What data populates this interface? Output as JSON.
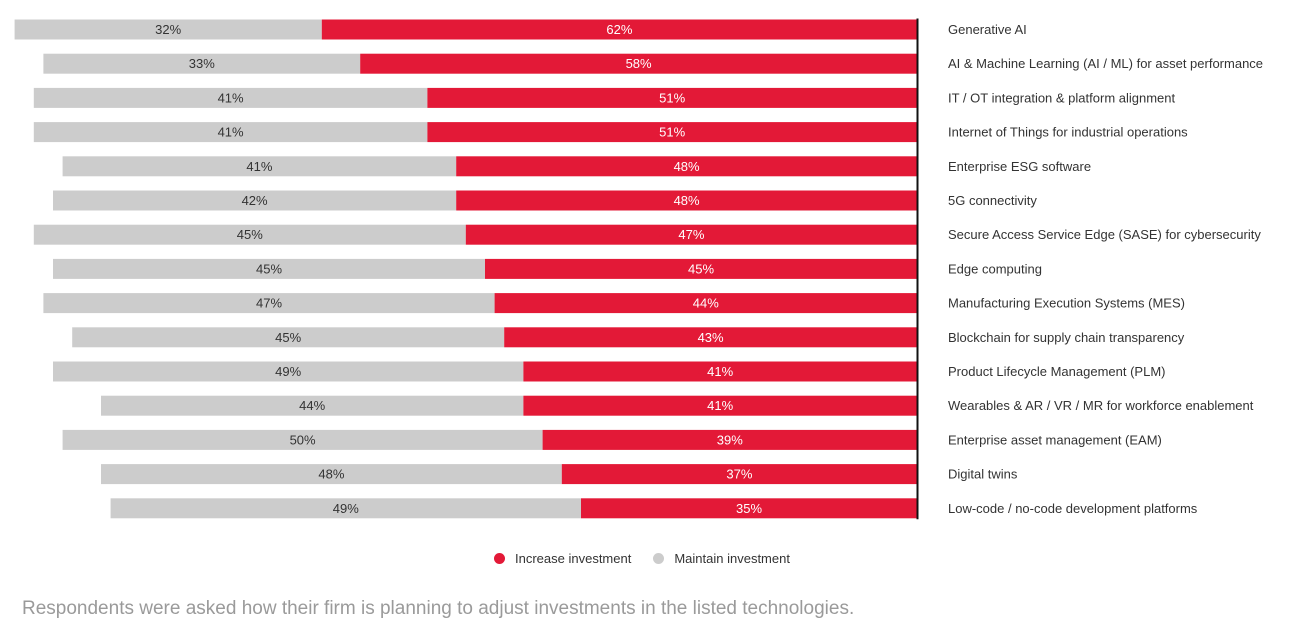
{
  "chart_data": {
    "type": "bar",
    "orientation": "horizontal-stacked-diverging",
    "categories": [
      "Generative AI",
      "AI & Machine Learning (AI / ML) for asset performance",
      "IT / OT integration & platform alignment",
      "Internet of Things for industrial operations",
      "Enterprise ESG software",
      "5G connectivity",
      "Secure Access Service Edge (SASE) for cybersecurity",
      "Edge computing",
      "Manufacturing Execution Systems (MES)",
      "Blockchain for supply chain transparency",
      "Product Lifecycle Management (PLM)",
      "Wearables & AR / VR / MR for workforce enablement",
      "Enterprise asset management (EAM)",
      "Digital twins",
      "Low-code / no-code development platforms"
    ],
    "series": [
      {
        "name": "Increase investment",
        "color": "#e31937",
        "values": [
          62,
          58,
          51,
          51,
          48,
          48,
          47,
          45,
          44,
          43,
          41,
          41,
          39,
          37,
          35
        ],
        "labels": [
          "62%",
          "58%",
          "51%",
          "51%",
          "48%",
          "48%",
          "47%",
          "45%",
          "44%",
          "43%",
          "41%",
          "41%",
          "39%",
          "37%",
          "35%"
        ]
      },
      {
        "name": "Maintain investment",
        "color": "#cccccc",
        "values": [
          32,
          33,
          41,
          41,
          41,
          42,
          45,
          45,
          47,
          45,
          49,
          44,
          50,
          48,
          49
        ],
        "labels": [
          "32%",
          "33%",
          "41%",
          "41%",
          "41%",
          "42%",
          "45%",
          "45%",
          "47%",
          "45%",
          "49%",
          "44%",
          "50%",
          "48%",
          "49%"
        ]
      }
    ],
    "legend_position": "bottom",
    "grid": false
  },
  "legend": {
    "increase_label": "Increase investment",
    "maintain_label": "Maintain investment"
  },
  "footnote": "Respondents were asked how their firm is planning to adjust investments in the listed technologies."
}
